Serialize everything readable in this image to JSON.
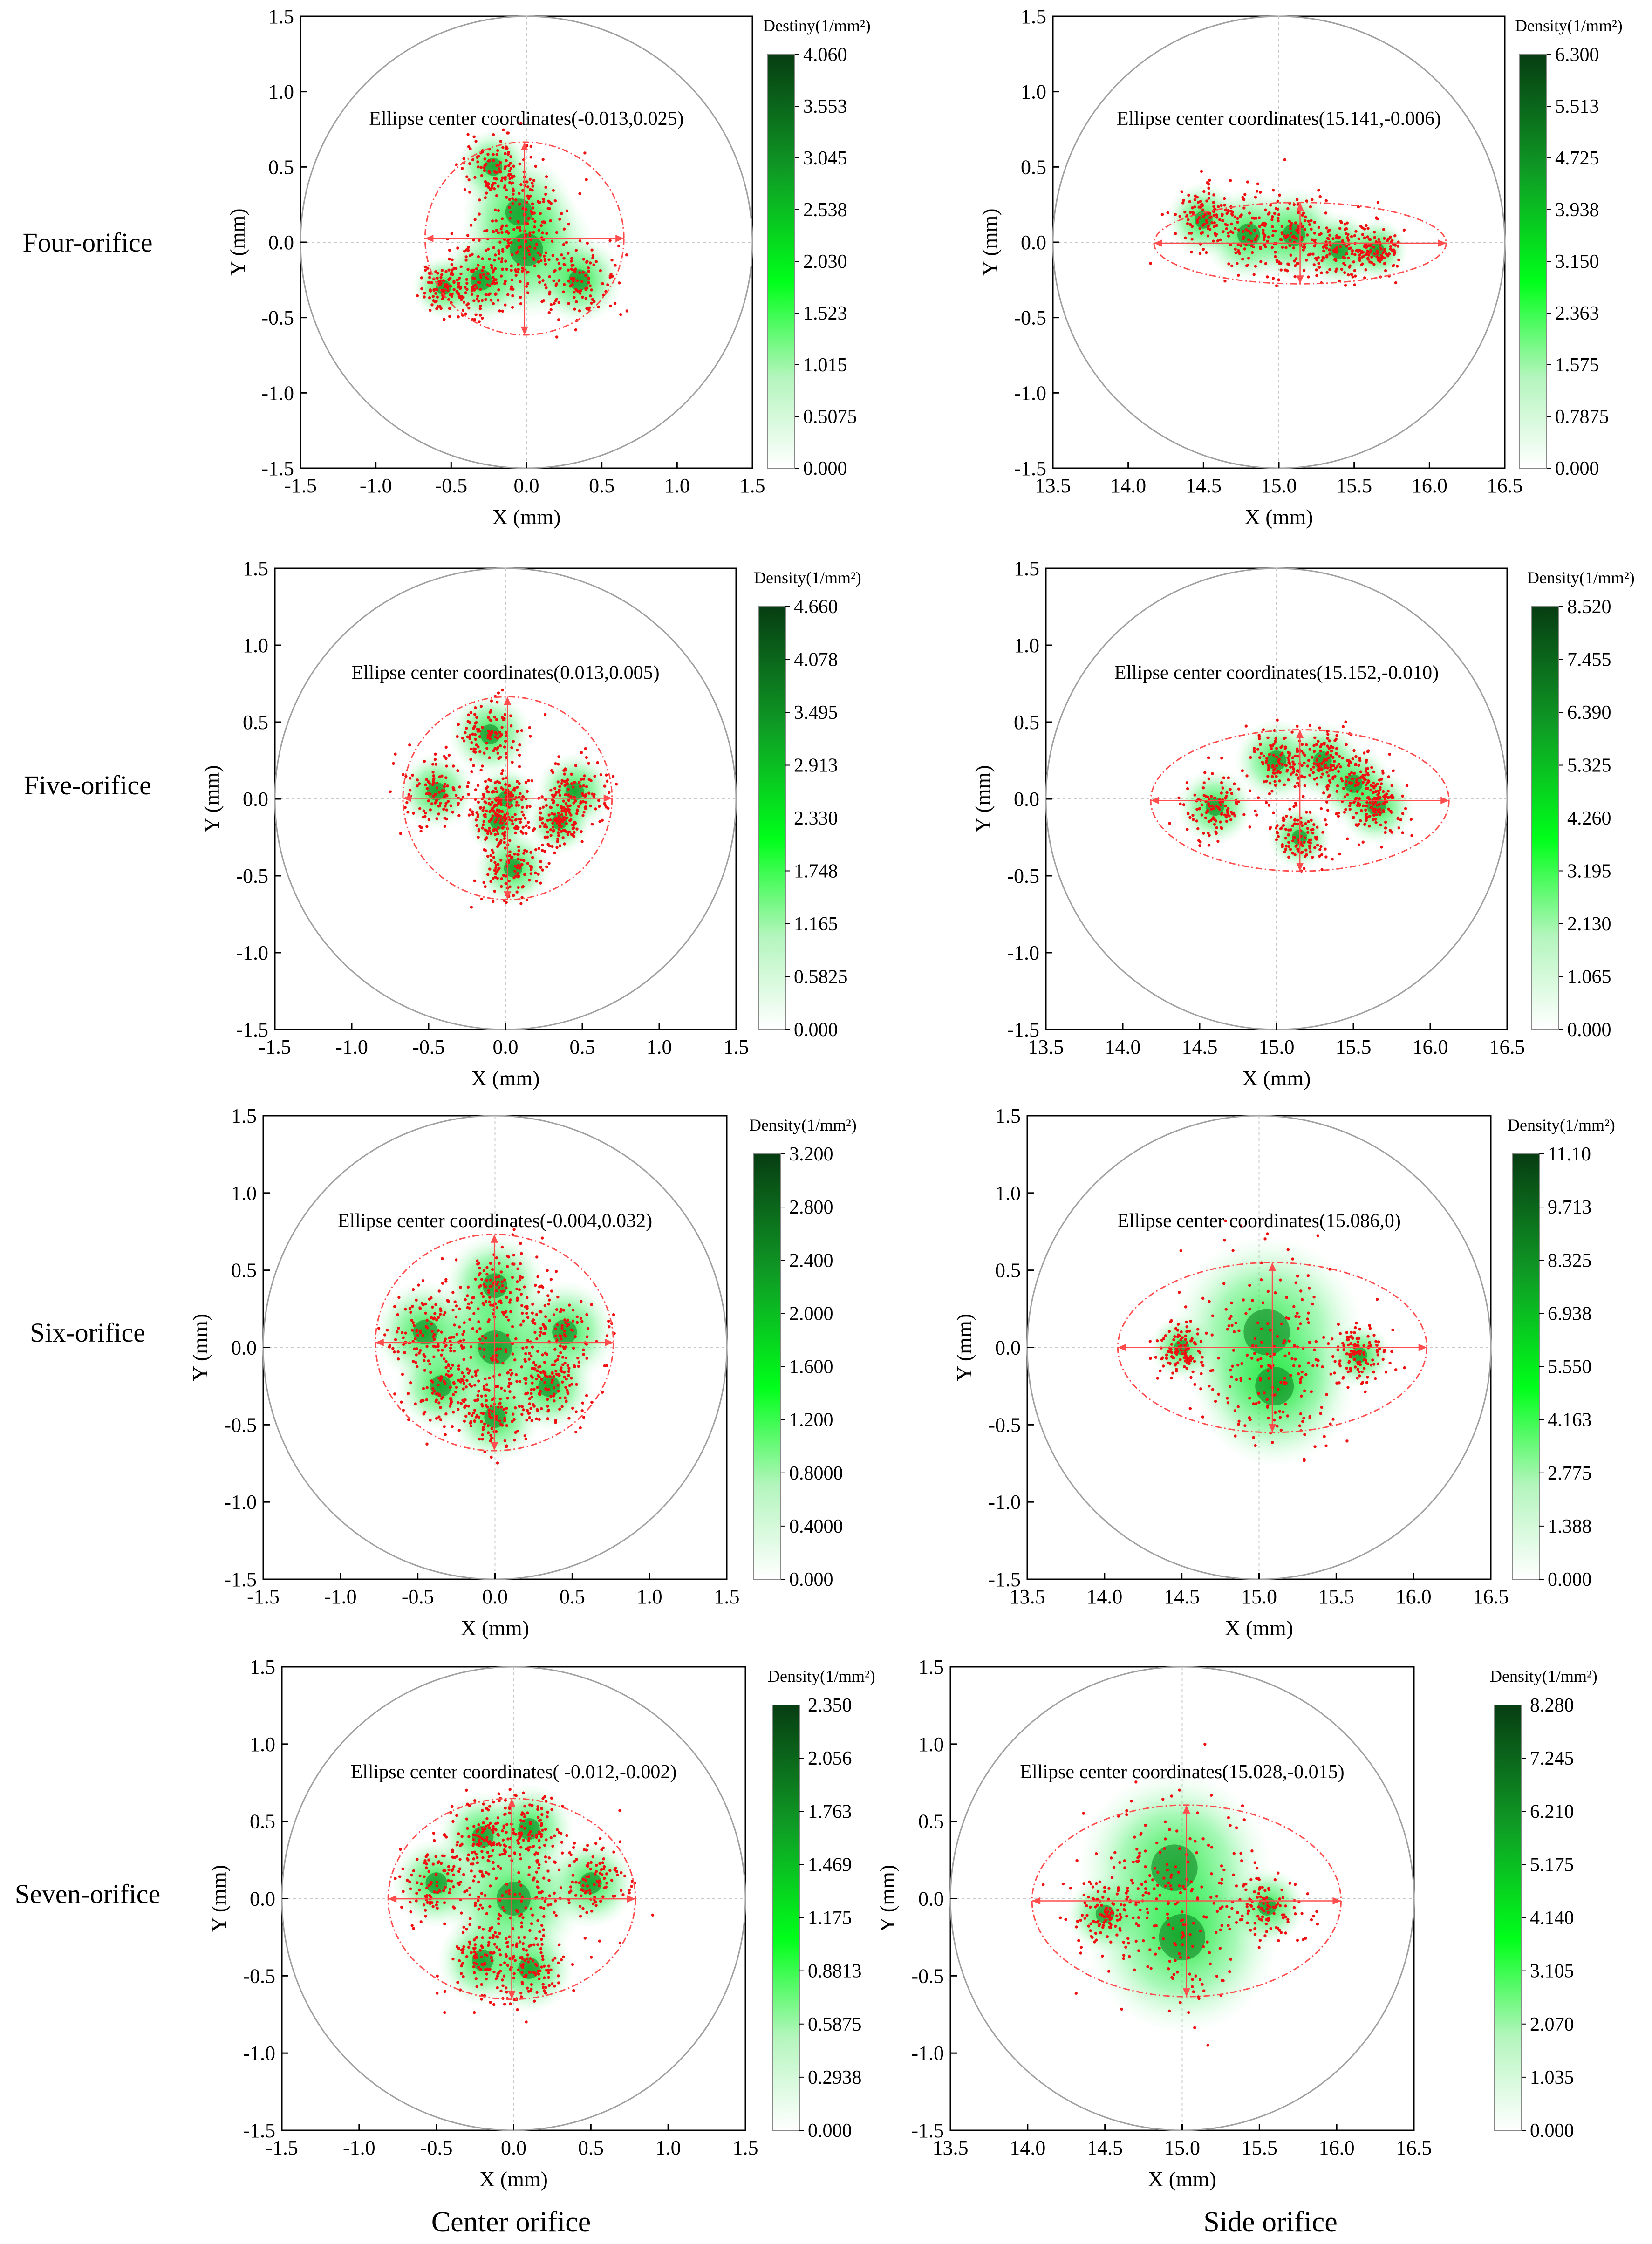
{
  "row_labels": [
    "Four-orifice",
    "Five-orifice",
    "Six-orifice",
    "Seven-orifice"
  ],
  "column_labels": [
    "Center orifice",
    "Side orifice"
  ],
  "colors": {
    "ellipse": "#ff4d4d",
    "points": "#ee1111",
    "boundary_circle": "#a0a0a0",
    "colorbar_low": "#ffffff",
    "colorbar_mid": "#00ff1a",
    "colorbar_high": "#073d12"
  },
  "chart_data": [
    {
      "type": "scatter",
      "orifice": "center",
      "row_label": "Four-orifice",
      "xlabel": "X (mm)",
      "ylabel": "Y (mm)",
      "xlim": [
        -1.5,
        1.5
      ],
      "ylim": [
        -1.5,
        1.5
      ],
      "x_ticks": [
        "-1.5",
        "-1.0",
        "-0.5",
        "0.0",
        "0.5",
        "1.0",
        "1.5"
      ],
      "y_ticks": [
        "-1.5",
        "-1.0",
        "-0.5",
        "0.0",
        "0.5",
        "1.0",
        "1.5"
      ],
      "colorbar_title": "Destiny(1/mm²)",
      "colorbar_ticks": [
        "4.060",
        "3.553",
        "3.045",
        "2.538",
        "2.030",
        "1.523",
        "1.015",
        "0.5075",
        "0.000"
      ],
      "annotation": "Ellipse center coordinates(-0.013,0.025)",
      "ellipse": {
        "center": [
          -0.013,
          0.025
        ],
        "rx": 0.66,
        "ry": 0.64
      },
      "clusters": [
        [
          -0.22,
          0.5,
          0.12
        ],
        [
          -0.05,
          0.2,
          0.18
        ],
        [
          0.0,
          -0.05,
          0.22
        ],
        [
          -0.3,
          -0.25,
          0.14
        ],
        [
          0.35,
          -0.25,
          0.14
        ],
        [
          -0.55,
          -0.3,
          0.1
        ]
      ]
    },
    {
      "type": "scatter",
      "orifice": "side",
      "row_label": "Four-orifice",
      "xlabel": "X (mm)",
      "ylabel": "Y (mm)",
      "xlim": [
        13.5,
        16.5
      ],
      "ylim": [
        -1.5,
        1.5
      ],
      "x_ticks": [
        "13.5",
        "14.0",
        "14.5",
        "15.0",
        "15.5",
        "16.0",
        "16.5"
      ],
      "y_ticks": [
        "-1.5",
        "-1.0",
        "-0.5",
        "0.0",
        "0.5",
        "1.0",
        "1.5"
      ],
      "colorbar_title": "Density(1/mm²)",
      "colorbar_ticks": [
        "6.300",
        "5.513",
        "4.725",
        "3.938",
        "3.150",
        "2.363",
        "1.575",
        "0.7875",
        "0.000"
      ],
      "annotation": "Ellipse center coordinates(15.141,-0.006)",
      "ellipse": {
        "center": [
          15.141,
          -0.006
        ],
        "rx": 0.97,
        "ry": 0.27
      },
      "clusters": [
        [
          14.5,
          0.15,
          0.12
        ],
        [
          14.8,
          0.05,
          0.15
        ],
        [
          15.1,
          0.05,
          0.15
        ],
        [
          15.4,
          -0.05,
          0.12
        ],
        [
          15.65,
          -0.05,
          0.1
        ]
      ]
    },
    {
      "type": "scatter",
      "orifice": "center",
      "row_label": "Five-orifice",
      "xlabel": "X (mm)",
      "ylabel": "Y (mm)",
      "xlim": [
        -1.5,
        1.5
      ],
      "ylim": [
        -1.5,
        1.5
      ],
      "x_ticks": [
        "-1.5",
        "-1.0",
        "-0.5",
        "0.0",
        "0.5",
        "1.0",
        "1.5"
      ],
      "y_ticks": [
        "-1.5",
        "-1.0",
        "-0.5",
        "0.0",
        "0.5",
        "1.0",
        "1.5"
      ],
      "colorbar_title": "Density(1/mm²)",
      "colorbar_ticks": [
        "4.660",
        "4.078",
        "3.495",
        "2.913",
        "2.330",
        "1.748",
        "1.165",
        "0.5825",
        "0.000"
      ],
      "annotation": "Ellipse center coordinates(0.013,0.005)",
      "ellipse": {
        "center": [
          0.013,
          0.005
        ],
        "rx": 0.68,
        "ry": 0.66
      },
      "clusters": [
        [
          -0.1,
          0.42,
          0.13
        ],
        [
          -0.45,
          0.05,
          0.12
        ],
        [
          0.45,
          0.05,
          0.12
        ],
        [
          0.0,
          0.0,
          0.1
        ],
        [
          -0.05,
          -0.15,
          0.1
        ],
        [
          0.35,
          -0.15,
          0.1
        ],
        [
          0.05,
          -0.45,
          0.12
        ]
      ]
    },
    {
      "type": "scatter",
      "orifice": "side",
      "row_label": "Five-orifice",
      "xlabel": "X (mm)",
      "ylabel": "Y (mm)",
      "xlim": [
        13.5,
        16.5
      ],
      "ylim": [
        -1.5,
        1.5
      ],
      "x_ticks": [
        "13.5",
        "14.0",
        "14.5",
        "15.0",
        "15.5",
        "16.0",
        "16.5"
      ],
      "y_ticks": [
        "-1.5",
        "-1.0",
        "-0.5",
        "0.0",
        "0.5",
        "1.0",
        "1.5"
      ],
      "colorbar_title": "Density(1/mm²)",
      "colorbar_ticks": [
        "8.520",
        "7.455",
        "6.390",
        "5.325",
        "4.260",
        "3.195",
        "2.130",
        "1.065",
        "0.000"
      ],
      "annotation": "Ellipse center coordinates(15.152,-0.010)",
      "ellipse": {
        "center": [
          15.152,
          -0.01
        ],
        "rx": 0.97,
        "ry": 0.46
      },
      "clusters": [
        [
          14.6,
          -0.05,
          0.12
        ],
        [
          15.0,
          0.25,
          0.13
        ],
        [
          15.3,
          0.25,
          0.12
        ],
        [
          15.15,
          -0.25,
          0.1
        ],
        [
          15.65,
          -0.05,
          0.12
        ],
        [
          15.5,
          0.1,
          0.12
        ]
      ]
    },
    {
      "type": "scatter",
      "orifice": "center",
      "row_label": "Six-orifice",
      "xlabel": "X (mm)",
      "ylabel": "Y (mm)",
      "xlim": [
        -1.5,
        1.5
      ],
      "ylim": [
        -1.5,
        1.5
      ],
      "x_ticks": [
        "-1.5",
        "-1.0",
        "-0.5",
        "0.0",
        "0.5",
        "1.0",
        "1.5"
      ],
      "y_ticks": [
        "-1.5",
        "-1.0",
        "-0.5",
        "0.0",
        "0.5",
        "1.0",
        "1.5"
      ],
      "colorbar_title": "Density(1/mm²)",
      "colorbar_ticks": [
        "3.200",
        "2.800",
        "2.400",
        "2.000",
        "1.600",
        "1.200",
        "0.8000",
        "0.4000",
        "0.000"
      ],
      "annotation": "Ellipse center coordinates(-0.004,0.032)",
      "ellipse": {
        "center": [
          -0.004,
          0.032
        ],
        "rx": 0.77,
        "ry": 0.7
      },
      "clusters": [
        [
          0.0,
          0.4,
          0.16
        ],
        [
          -0.45,
          0.1,
          0.16
        ],
        [
          0.45,
          0.1,
          0.16
        ],
        [
          0.0,
          0.0,
          0.22
        ],
        [
          -0.35,
          -0.25,
          0.14
        ],
        [
          0.35,
          -0.25,
          0.14
        ],
        [
          0.0,
          -0.45,
          0.14
        ]
      ]
    },
    {
      "type": "scatter",
      "orifice": "side",
      "row_label": "Six-orifice",
      "xlabel": "X (mm)",
      "ylabel": "Y (mm)",
      "xlim": [
        13.5,
        16.5
      ],
      "ylim": [
        -1.5,
        1.5
      ],
      "x_ticks": [
        "13.5",
        "14.0",
        "14.5",
        "15.0",
        "15.5",
        "16.0",
        "16.5"
      ],
      "y_ticks": [
        "-1.5",
        "-1.0",
        "-0.5",
        "0.0",
        "0.5",
        "1.0",
        "1.5"
      ],
      "colorbar_title": "Density(1/mm²)",
      "colorbar_ticks": [
        "11.10",
        "9.713",
        "8.325",
        "6.938",
        "5.550",
        "4.163",
        "2.775",
        "1.388",
        "0.000"
      ],
      "annotation": "Ellipse center coordinates(15.086,0)",
      "ellipse": {
        "center": [
          15.086,
          0.0
        ],
        "rx": 1.0,
        "ry": 0.55
      },
      "clusters": [
        [
          14.5,
          0.0,
          0.1
        ],
        [
          15.65,
          -0.05,
          0.1
        ],
        [
          15.05,
          0.1,
          0.3
        ],
        [
          15.1,
          -0.25,
          0.25
        ]
      ]
    },
    {
      "type": "scatter",
      "orifice": "center",
      "row_label": "Seven-orifice",
      "xlabel": "X (mm)",
      "ylabel": "Y (mm)",
      "xlim": [
        -1.5,
        1.5
      ],
      "ylim": [
        -1.5,
        1.5
      ],
      "x_ticks": [
        "-1.5",
        "-1.0",
        "-0.5",
        "0.0",
        "0.5",
        "1.0",
        "1.5"
      ],
      "y_ticks": [
        "-1.5",
        "-1.0",
        "-0.5",
        "0.0",
        "0.5",
        "1.0",
        "1.5"
      ],
      "colorbar_title": "Density(1/mm²)",
      "colorbar_ticks": [
        "2.350",
        "2.056",
        "1.763",
        "1.469",
        "1.175",
        "0.8813",
        "0.5875",
        "0.2938",
        "0.000"
      ],
      "annotation": "Ellipse center coordinates( -0.012,-0.002)",
      "ellipse": {
        "center": [
          -0.012,
          -0.002
        ],
        "rx": 0.8,
        "ry": 0.65
      },
      "clusters": [
        [
          -0.2,
          0.4,
          0.14
        ],
        [
          0.1,
          0.45,
          0.14
        ],
        [
          -0.5,
          0.1,
          0.14
        ],
        [
          0.5,
          0.1,
          0.14
        ],
        [
          -0.2,
          -0.4,
          0.14
        ],
        [
          0.1,
          -0.45,
          0.14
        ],
        [
          0.0,
          0.0,
          0.22
        ]
      ]
    },
    {
      "type": "scatter",
      "orifice": "side",
      "row_label": "Seven-orifice",
      "xlabel": "X (mm)",
      "ylabel": "Y (mm)",
      "xlim": [
        13.5,
        16.5
      ],
      "ylim": [
        -1.5,
        1.5
      ],
      "x_ticks": [
        "13.5",
        "14.0",
        "14.5",
        "15.0",
        "15.5",
        "16.0",
        "16.5"
      ],
      "y_ticks": [
        "-1.5",
        "-1.0",
        "-0.5",
        "0.0",
        "0.5",
        "1.0",
        "1.5"
      ],
      "colorbar_title": "Density(1/mm²)",
      "colorbar_ticks": [
        "8.280",
        "7.245",
        "6.210",
        "5.175",
        "4.140",
        "3.105",
        "2.070",
        "1.035",
        "0.000"
      ],
      "annotation": "Ellipse center coordinates(15.028,-0.015)",
      "ellipse": {
        "center": [
          15.028,
          -0.015
        ],
        "rx": 1.0,
        "ry": 0.62
      },
      "clusters": [
        [
          14.5,
          -0.1,
          0.12
        ],
        [
          15.55,
          -0.05,
          0.12
        ],
        [
          14.95,
          0.2,
          0.3
        ],
        [
          15.0,
          -0.25,
          0.3
        ]
      ]
    }
  ]
}
